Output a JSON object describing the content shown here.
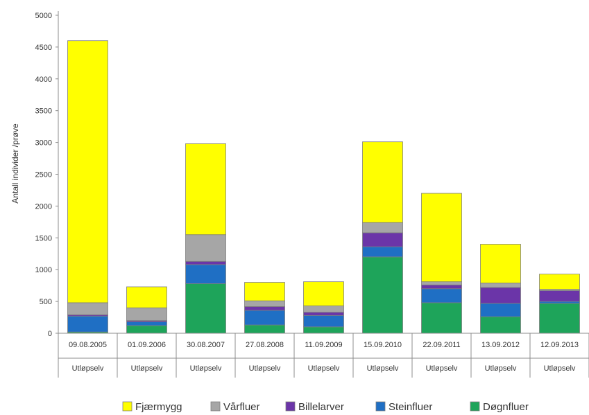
{
  "chart_data": {
    "type": "bar",
    "stacked": true,
    "ylabel": "Antall individer /prøve",
    "ylim": [
      0,
      5000
    ],
    "yticks": [
      0,
      500,
      1000,
      1500,
      2000,
      2500,
      3000,
      3500,
      4000,
      4500,
      5000
    ],
    "categories": [
      [
        "09.08.2005",
        "Utløpselv"
      ],
      [
        "01.09.2006",
        "Utløpselv"
      ],
      [
        "30.08.2007",
        "Utløpselv"
      ],
      [
        "27.08.2008",
        "Utløpselv"
      ],
      [
        "11.09.2009",
        "Utløpselv"
      ],
      [
        "15.09.2010",
        "Utløpselv"
      ],
      [
        "22.09.2011",
        "Utløpselv"
      ],
      [
        "13.09.2012",
        "Utløpselv"
      ],
      [
        "12.09.2013",
        "Utløpselv"
      ]
    ],
    "series": [
      {
        "name": "Døgnfluer",
        "color": "#1ea45a",
        "values": [
          20,
          120,
          780,
          130,
          100,
          1200,
          480,
          260,
          470
        ]
      },
      {
        "name": "Steinfluer",
        "color": "#1f6fc4",
        "values": [
          250,
          60,
          300,
          230,
          180,
          160,
          220,
          210,
          30
        ]
      },
      {
        "name": "Billelarver",
        "color": "#6b35a8",
        "values": [
          20,
          20,
          50,
          60,
          50,
          220,
          60,
          250,
          170
        ]
      },
      {
        "name": "Vårfluer",
        "color": "#a6a6a6",
        "values": [
          190,
          200,
          420,
          90,
          100,
          160,
          50,
          70,
          20
        ]
      },
      {
        "name": "Fjærmygg",
        "color": "#ffff00",
        "values": [
          4120,
          330,
          1430,
          290,
          380,
          1270,
          1390,
          610,
          240
        ]
      }
    ],
    "legend": {
      "position": "bottom",
      "order": [
        "Fjærmygg",
        "Vårfluer",
        "Billelarver",
        "Steinfluer",
        "Døgnfluer"
      ]
    },
    "grid": false
  }
}
